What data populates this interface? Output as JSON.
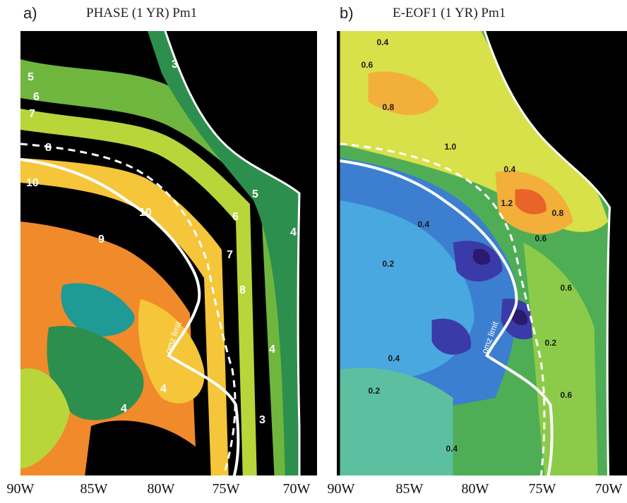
{
  "panels": [
    {
      "letter": "a)",
      "title": "PHASE (1 YR) Pm1",
      "contour_labels": [
        "5",
        "6",
        "7",
        "8",
        "10",
        "10",
        "9",
        "8",
        "7",
        "6",
        "5",
        "4",
        "4",
        "4",
        "3",
        "3",
        "4"
      ],
      "omz_label": "omz limit",
      "x_ticks": [
        "90W",
        "85W",
        "80W",
        "75W",
        "70W"
      ]
    },
    {
      "letter": "b)",
      "title": "E-EOF1 (1 YR) Pm1",
      "contour_labels": [
        "0.4",
        "0.6",
        "0.8",
        "1.0",
        "0.4",
        "1.2",
        "0.8",
        "0.6",
        "0.6",
        "0.4",
        "0.2",
        "0.4",
        "0.2",
        "0.4",
        "0.6",
        "0.2"
      ],
      "omz_label": "omz limit",
      "x_ticks": [
        "90W",
        "85W",
        "80W",
        "75W",
        "70W"
      ]
    }
  ],
  "colors": {
    "land": "#000000",
    "coast": "#ffffff",
    "phase_palette": [
      "#f08a2a",
      "#f5c53a",
      "#b8d63a",
      "#6fb63e",
      "#2d8f4e",
      "#1f9a95",
      "#000000"
    ],
    "eof_palette": [
      "#2a1a6e",
      "#3a3aa8",
      "#3c7fd0",
      "#4aa8e0",
      "#5cc0a0",
      "#4fae55",
      "#8ccb4a",
      "#d8e04a",
      "#f2b03a",
      "#e8642a"
    ]
  }
}
